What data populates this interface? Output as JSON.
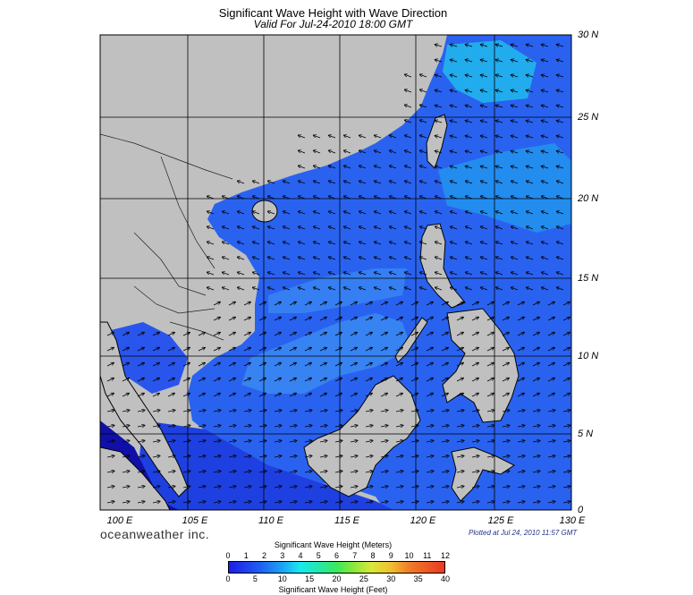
{
  "header": {
    "title": "Significant Wave Height with Wave Direction",
    "valid": "Valid For Jul-24-2010 18:00 GMT"
  },
  "axes": {
    "lat_labels": [
      "30 N",
      "25 N",
      "20 N",
      "15 N",
      "10 N",
      "5 N",
      "0"
    ],
    "lon_labels": [
      "100 E",
      "105 E",
      "110 E",
      "115 E",
      "120 E",
      "125 E",
      "130 E"
    ]
  },
  "footer": {
    "brand": "oceanweather inc.",
    "plotted": "Plotted at Jul 24, 2010 11:57 GMT"
  },
  "legend": {
    "meters_title": "Significant Wave Height (Meters)",
    "meters_ticks": [
      "0",
      "1",
      "2",
      "3",
      "4",
      "5",
      "6",
      "7",
      "8",
      "9",
      "10",
      "11",
      "12"
    ],
    "feet_title": "Significant Wave Height (Feet)",
    "feet_ticks": [
      "0",
      "5",
      "10",
      "15",
      "20",
      "25",
      "30",
      "35",
      "40"
    ]
  },
  "colors": {
    "land": "#c0c0c0",
    "sea_deep": "#1a2ee0",
    "sea_mid": "#2a62f0",
    "sea_light": "#3b9cf2",
    "sea_cyan": "#1fc6ee",
    "sea_dark": "#1010a8"
  }
}
